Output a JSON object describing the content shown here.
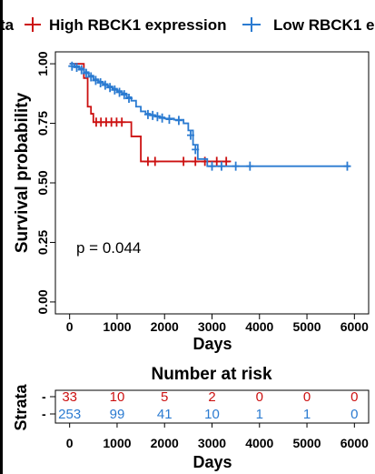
{
  "legend": {
    "prefix": "ta",
    "items": [
      {
        "label": "High RBCK1 expression",
        "color": "#CC1111"
      },
      {
        "label": "Low RBCK1 e",
        "color": "#2B7BD1"
      }
    ]
  },
  "chart_data": {
    "type": "line",
    "subtype": "kaplan-meier",
    "xlabel": "Days",
    "ylabel": "Survival probability",
    "xlim": [
      -300,
      6300
    ],
    "ylim": [
      -0.05,
      1.05
    ],
    "xticks": [
      0,
      1000,
      2000,
      3000,
      4000,
      5000,
      6000
    ],
    "yticks": [
      "0.00",
      "0.25",
      "0.50",
      "0.75",
      "1.00"
    ],
    "grid": false,
    "pvalue": "p = 0.044",
    "series": [
      {
        "name": "High RBCK1 expression",
        "color": "#CC1111",
        "steps": [
          [
            0,
            1.0
          ],
          [
            300,
            0.94
          ],
          [
            380,
            0.82
          ],
          [
            450,
            0.79
          ],
          [
            500,
            0.755
          ],
          [
            1300,
            0.695
          ],
          [
            1500,
            0.59
          ],
          [
            3400,
            0.59
          ]
        ],
        "censors": [
          [
            560,
            0.755
          ],
          [
            660,
            0.755
          ],
          [
            770,
            0.755
          ],
          [
            880,
            0.755
          ],
          [
            990,
            0.755
          ],
          [
            1100,
            0.755
          ],
          [
            1650,
            0.59
          ],
          [
            1800,
            0.59
          ],
          [
            2400,
            0.59
          ],
          [
            2650,
            0.59
          ],
          [
            2850,
            0.59
          ],
          [
            3100,
            0.59
          ],
          [
            3300,
            0.59
          ]
        ]
      },
      {
        "name": "Low RBCK1 expression",
        "color": "#2B7BD1",
        "steps": [
          [
            0,
            1.0
          ],
          [
            100,
            0.99
          ],
          [
            200,
            0.98
          ],
          [
            300,
            0.965
          ],
          [
            400,
            0.95
          ],
          [
            500,
            0.935
          ],
          [
            600,
            0.925
          ],
          [
            700,
            0.915
          ],
          [
            800,
            0.905
          ],
          [
            900,
            0.895
          ],
          [
            1000,
            0.885
          ],
          [
            1100,
            0.875
          ],
          [
            1200,
            0.86
          ],
          [
            1300,
            0.845
          ],
          [
            1400,
            0.82
          ],
          [
            1500,
            0.8
          ],
          [
            1600,
            0.79
          ],
          [
            1700,
            0.785
          ],
          [
            1800,
            0.78
          ],
          [
            1900,
            0.775
          ],
          [
            2000,
            0.77
          ],
          [
            2200,
            0.765
          ],
          [
            2400,
            0.75
          ],
          [
            2500,
            0.72
          ],
          [
            2600,
            0.66
          ],
          [
            2700,
            0.6
          ],
          [
            2900,
            0.57
          ],
          [
            5900,
            0.57
          ]
        ],
        "censors": [
          [
            50,
            0.99
          ],
          [
            150,
            0.985
          ],
          [
            250,
            0.975
          ],
          [
            350,
            0.96
          ],
          [
            450,
            0.945
          ],
          [
            550,
            0.93
          ],
          [
            650,
            0.92
          ],
          [
            750,
            0.91
          ],
          [
            850,
            0.9
          ],
          [
            950,
            0.89
          ],
          [
            1050,
            0.88
          ],
          [
            1150,
            0.87
          ],
          [
            1250,
            0.855
          ],
          [
            1650,
            0.787
          ],
          [
            1750,
            0.783
          ],
          [
            1850,
            0.778
          ],
          [
            1950,
            0.772
          ],
          [
            2100,
            0.767
          ],
          [
            2300,
            0.762
          ],
          [
            2550,
            0.7
          ],
          [
            2650,
            0.64
          ],
          [
            3000,
            0.57
          ],
          [
            3200,
            0.57
          ],
          [
            3500,
            0.57
          ],
          [
            3800,
            0.57
          ],
          [
            5850,
            0.57
          ]
        ]
      }
    ]
  },
  "risk_table": {
    "title": "Number at risk",
    "ylabel": "Strata",
    "xlabel": "Days",
    "row_markers": [
      "-",
      "-"
    ],
    "xticks": [
      0,
      1000,
      2000,
      3000,
      4000,
      5000,
      6000
    ],
    "rows": [
      {
        "color": "#CC1111",
        "values": [
          "33",
          "10",
          "5",
          "2",
          "0",
          "0",
          "0"
        ]
      },
      {
        "color": "#2B7BD1",
        "values": [
          "253",
          "99",
          "41",
          "10",
          "1",
          "1",
          "0"
        ]
      }
    ]
  }
}
